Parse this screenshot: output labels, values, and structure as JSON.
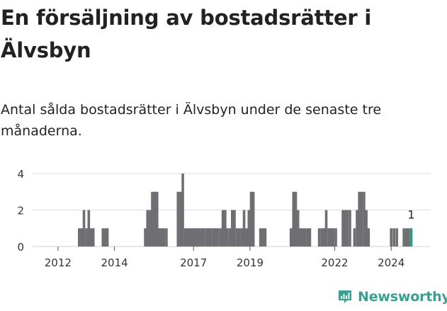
{
  "header": {
    "title": "En försäljning av bostadsrätter i Älvsbyn",
    "subtitle": "Antal sålda bostadsrätter i Älvsbyn under de senaste tre månaderna."
  },
  "brand": {
    "name": "Newsworthy",
    "color": "#3a9e92"
  },
  "chart_data": {
    "type": "bar",
    "title": "En försäljning av bostadsrätter i Älvsbyn",
    "subtitle": "Antal sålda bostadsrätter i Älvsbyn under de senaste tre månaderna.",
    "xlabel": "",
    "ylabel": "",
    "ylim": [
      0,
      4
    ],
    "yticks": [
      0,
      2,
      4
    ],
    "xticks": [
      "2012",
      "2014",
      "2017",
      "2019",
      "2022",
      "2024"
    ],
    "xtick_positions": [
      2012.2,
      2014.2,
      2017.0,
      2019.0,
      2022.0,
      2024.0
    ],
    "x_range": [
      2011.3,
      2025.4
    ],
    "grid": true,
    "bar_color": "#6e6e73",
    "highlight_color": "#1f9e8e",
    "highlight_label": "1",
    "x": [
      2012.95,
      2013.04,
      2013.12,
      2013.21,
      2013.29,
      2013.37,
      2013.45,
      2013.79,
      2013.87,
      2013.95,
      2015.29,
      2015.37,
      2015.46,
      2015.54,
      2015.62,
      2015.71,
      2015.79,
      2015.87,
      2015.95,
      2016.04,
      2016.45,
      2016.54,
      2016.62,
      2016.71,
      2016.79,
      2016.87,
      2016.95,
      2017.04,
      2017.12,
      2017.2,
      2017.29,
      2017.37,
      2017.46,
      2017.54,
      2017.62,
      2017.71,
      2017.79,
      2017.87,
      2017.96,
      2018.04,
      2018.12,
      2018.2,
      2018.29,
      2018.37,
      2018.45,
      2018.54,
      2018.62,
      2018.71,
      2018.79,
      2018.87,
      2018.96,
      2019.04,
      2019.12,
      2019.37,
      2019.46,
      2019.54,
      2020.45,
      2020.54,
      2020.62,
      2020.7,
      2020.79,
      2020.87,
      2020.95,
      2021.04,
      2021.12,
      2021.45,
      2021.54,
      2021.62,
      2021.7,
      2021.79,
      2021.87,
      2021.95,
      2022.04,
      2022.29,
      2022.37,
      2022.45,
      2022.54,
      2022.7,
      2022.79,
      2022.87,
      2022.95,
      2023.04,
      2023.12,
      2023.2,
      2024.0,
      2024.1,
      2024.2,
      2024.45,
      2024.54,
      2024.62,
      2024.71
    ],
    "values": [
      1,
      1,
      2,
      1,
      2,
      1,
      1,
      1,
      1,
      1,
      1,
      2,
      2,
      3,
      3,
      3,
      1,
      1,
      1,
      1,
      3,
      3,
      4,
      1,
      1,
      1,
      1,
      1,
      1,
      1,
      1,
      1,
      1,
      1,
      1,
      1,
      1,
      1,
      1,
      2,
      2,
      1,
      1,
      2,
      2,
      1,
      1,
      1,
      2,
      1,
      2,
      3,
      3,
      1,
      1,
      1,
      1,
      3,
      3,
      2,
      1,
      1,
      1,
      1,
      1,
      1,
      1,
      1,
      2,
      1,
      1,
      1,
      1,
      2,
      2,
      2,
      2,
      1,
      2,
      3,
      3,
      3,
      2,
      1,
      1,
      1,
      1,
      1,
      1,
      1,
      1
    ],
    "highlight_index": 90
  }
}
